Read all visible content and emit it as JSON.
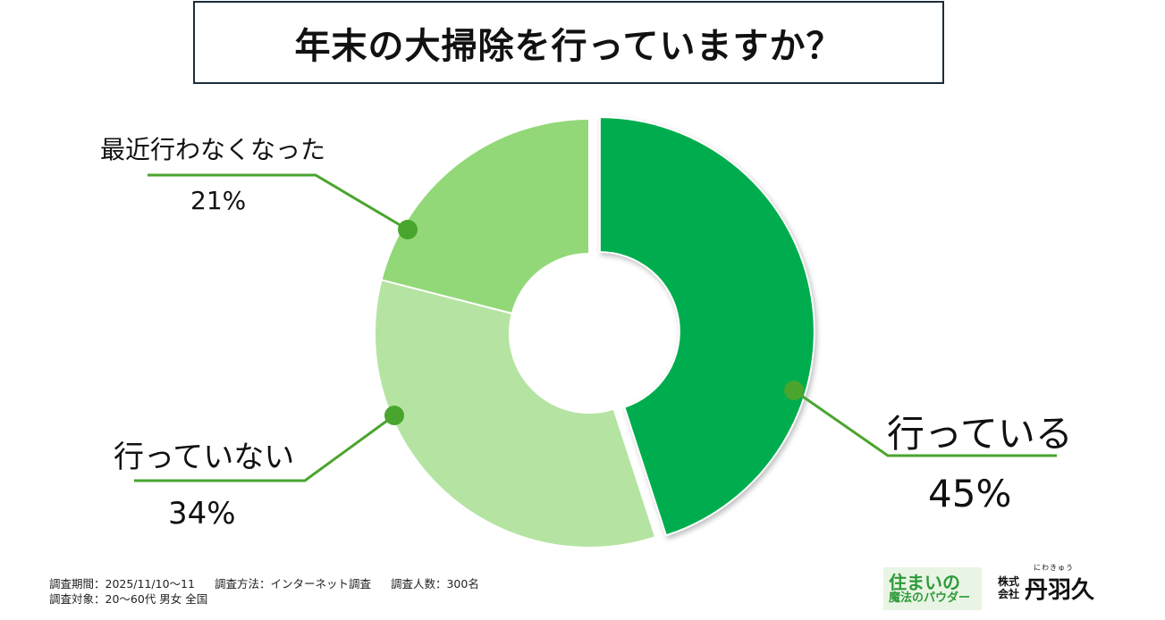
{
  "title": "年末の大掃除を行っていますか？",
  "chart_data": {
    "type": "pie",
    "title": "年末の大掃除を行っていますか？",
    "slices": [
      {
        "label": "行っている",
        "value": 45,
        "display": "45%",
        "color": "#00ad4e"
      },
      {
        "label": "行っていない",
        "value": 34,
        "display": "34%",
        "color": "#b5e4a2"
      },
      {
        "label": "最近行わなくなった",
        "value": 21,
        "display": "21%",
        "color": "#92d878"
      }
    ],
    "leader_color": "#4aa52e"
  },
  "footer": {
    "period": "調査期間：2025/11/10～11",
    "method": "調査方法：インターネット調査",
    "count": "調査人数：300名",
    "target": "調査対象：20～60代 男女 全国"
  },
  "brand": {
    "logo_line1": "住まいの",
    "logo_line2": "魔法のパウダー",
    "company_prefix_1": "株式",
    "company_prefix_2": "会社",
    "company_name": "丹羽久",
    "company_ruby": "にわきゅう"
  }
}
